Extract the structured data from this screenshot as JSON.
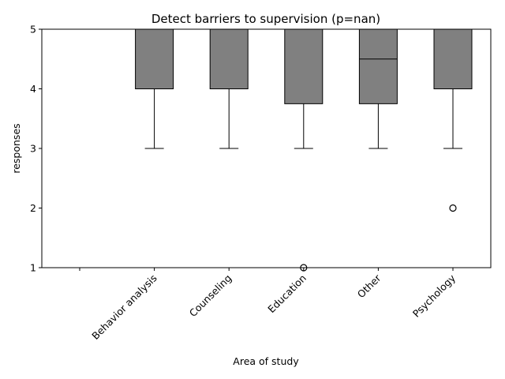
{
  "chart_data": {
    "type": "box",
    "title": "Detect barriers to supervision (p=nan)",
    "xlabel": "Area of study",
    "ylabel": "responses",
    "ylim": [
      1,
      5
    ],
    "yticks": [
      1,
      2,
      3,
      4,
      5
    ],
    "grid": false,
    "box_color": "#808080",
    "categories": [
      "",
      "Behavior analysis",
      "Counseling",
      "Education",
      "Other",
      "Psychology"
    ],
    "boxes": [
      null,
      {
        "whisker_low": 3,
        "q1": 4,
        "median": 5,
        "q3": 5,
        "whisker_high": 5,
        "outliers": []
      },
      {
        "whisker_low": 3,
        "q1": 4,
        "median": 5,
        "q3": 5,
        "whisker_high": 5,
        "outliers": []
      },
      {
        "whisker_low": 3,
        "q1": 3.75,
        "median": 5,
        "q3": 5,
        "whisker_high": 5,
        "outliers": [
          1
        ]
      },
      {
        "whisker_low": 3,
        "q1": 3.75,
        "median": 4.5,
        "q3": 5,
        "whisker_high": 5,
        "outliers": []
      },
      {
        "whisker_low": 3,
        "q1": 4,
        "median": 5,
        "q3": 5,
        "whisker_high": 5,
        "outliers": [
          2
        ]
      }
    ]
  }
}
